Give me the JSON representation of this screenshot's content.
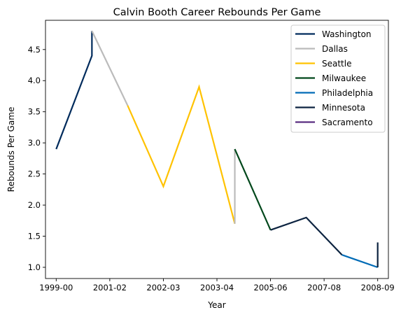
{
  "chart_data": {
    "type": "line",
    "title": "Calvin Booth Career Rebounds Per Game",
    "xlabel": "Year",
    "ylabel": "Rebounds Per Game",
    "xlim": [
      -0.3,
      9.3
    ],
    "ylim": [
      0.82,
      4.97
    ],
    "x_ticks": [
      {
        "pos": 0,
        "label": "1999-00"
      },
      {
        "pos": 1.5,
        "label": "2001-02"
      },
      {
        "pos": 3,
        "label": "2002-03"
      },
      {
        "pos": 4.5,
        "label": "2003-04"
      },
      {
        "pos": 6,
        "label": "2005-06"
      },
      {
        "pos": 7.5,
        "label": "2007-08"
      },
      {
        "pos": 9,
        "label": "2008-09"
      }
    ],
    "y_ticks": [
      {
        "pos": 1.0,
        "label": "1.0"
      },
      {
        "pos": 1.5,
        "label": "1.5"
      },
      {
        "pos": 2.0,
        "label": "2.0"
      },
      {
        "pos": 2.5,
        "label": "2.5"
      },
      {
        "pos": 3.0,
        "label": "3.0"
      },
      {
        "pos": 3.5,
        "label": "3.5"
      },
      {
        "pos": 4.0,
        "label": "4.0"
      },
      {
        "pos": 4.5,
        "label": "4.5"
      }
    ],
    "legend_position": "top-right",
    "grid": false,
    "series": [
      {
        "name": "Washington",
        "color": "#002B5C",
        "x": [
          0,
          1,
          1
        ],
        "y": [
          2.9,
          4.4,
          4.8
        ]
      },
      {
        "name": "Dallas",
        "color": "#BBBBBB",
        "x": [
          1,
          2
        ],
        "y": [
          4.8,
          3.6
        ]
      },
      {
        "name": "Seattle",
        "color": "#FFC200",
        "x": [
          2,
          3,
          4,
          5
        ],
        "y": [
          3.6,
          2.3,
          3.9,
          1.7
        ]
      },
      {
        "name": "Dallas",
        "color": "#BBBBBB",
        "x": [
          5,
          5
        ],
        "y": [
          1.7,
          2.9
        ]
      },
      {
        "name": "Milwaukee",
        "color": "#00471B",
        "x": [
          5,
          6
        ],
        "y": [
          2.9,
          1.6
        ]
      },
      {
        "name": "Minnesota",
        "color": "#0C2340",
        "x": [
          6,
          7,
          8
        ],
        "y": [
          1.6,
          1.8,
          1.2
        ]
      },
      {
        "name": "Philadelphia",
        "color": "#006BB6",
        "x": [
          8,
          9
        ],
        "y": [
          1.2,
          1.0
        ]
      },
      {
        "name": "Minnesota",
        "color": "#0C2340",
        "x": [
          9,
          9
        ],
        "y": [
          1.0,
          1.4
        ]
      }
    ],
    "legend": [
      {
        "name": "Washington",
        "color": "#002B5C"
      },
      {
        "name": "Dallas",
        "color": "#BBBBBB"
      },
      {
        "name": "Seattle",
        "color": "#FFC200"
      },
      {
        "name": "Milwaukee",
        "color": "#00471B"
      },
      {
        "name": "Philadelphia",
        "color": "#006BB6"
      },
      {
        "name": "Minnesota",
        "color": "#0C2340"
      },
      {
        "name": "Sacramento",
        "color": "#5A2D81"
      }
    ]
  }
}
